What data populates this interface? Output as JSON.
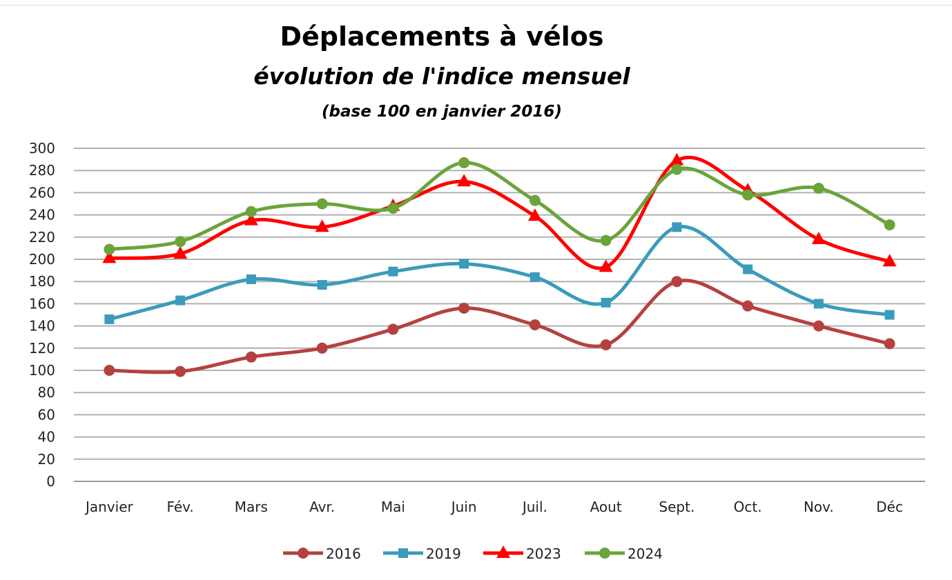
{
  "chart_data": {
    "type": "line",
    "title": "Déplacements à vélos",
    "subtitle": "évolution de l'indice mensuel",
    "subtitle2": "(base 100 en janvier 2016)",
    "xlabel": "",
    "ylabel": "",
    "ylim": [
      0,
      300
    ],
    "yticks": [
      0,
      20,
      40,
      60,
      80,
      100,
      120,
      140,
      160,
      180,
      200,
      220,
      240,
      260,
      280,
      300
    ],
    "grid": true,
    "smooth": true,
    "legend": "bottom",
    "categories": [
      "Janvier",
      "Fév.",
      "Mars",
      "Avr.",
      "Mai",
      "Juin",
      "Juil.",
      "Aout",
      "Sept.",
      "Oct.",
      "Nov.",
      "Déc"
    ],
    "series": [
      {
        "name": "2016",
        "color": "#b5413e",
        "marker": "circle",
        "values": [
          100,
          99,
          112,
          120,
          137,
          156,
          141,
          123,
          180,
          158,
          140,
          124
        ]
      },
      {
        "name": "2019",
        "color": "#3b9bbb",
        "marker": "square",
        "values": [
          146,
          163,
          182,
          177,
          189,
          196,
          184,
          161,
          229,
          191,
          160,
          150
        ]
      },
      {
        "name": "2023",
        "color": "#ff0000",
        "marker": "triangle",
        "values": [
          201,
          205,
          235,
          229,
          248,
          270,
          239,
          193,
          289,
          262,
          218,
          198
        ]
      },
      {
        "name": "2024",
        "color": "#6aa43a",
        "marker": "circle",
        "values": [
          209,
          216,
          243,
          250,
          246,
          287,
          253,
          217,
          281,
          258,
          264,
          231
        ]
      }
    ]
  }
}
